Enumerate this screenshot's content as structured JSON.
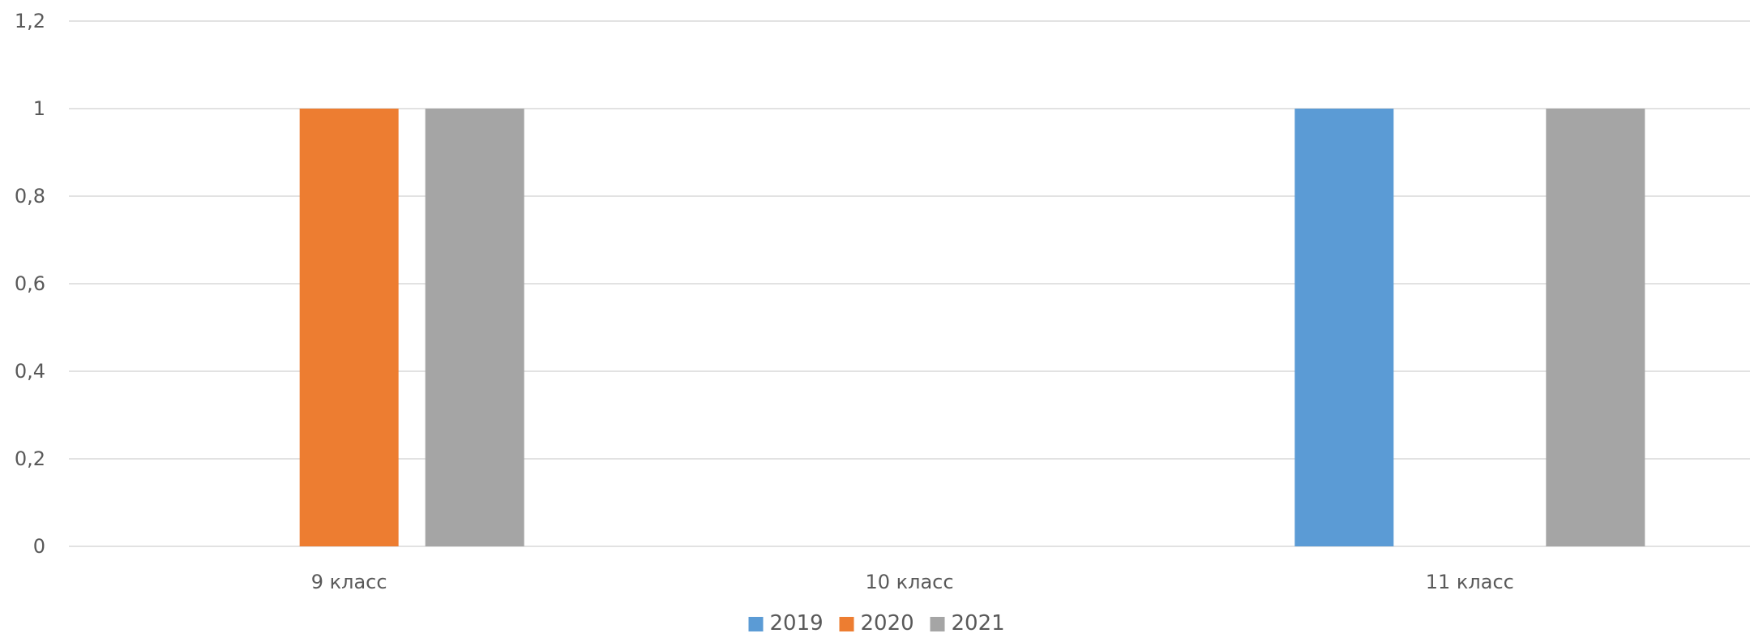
{
  "chart_data": {
    "type": "bar",
    "categories": [
      "9 класс",
      "10 класс",
      "11 класс"
    ],
    "series": [
      {
        "name": "2019",
        "color": "#5b9bd5",
        "values": [
          0,
          0,
          1
        ]
      },
      {
        "name": "2020",
        "color": "#ed7d31",
        "values": [
          1,
          0,
          0
        ]
      },
      {
        "name": "2021",
        "color": "#a5a5a5",
        "values": [
          1,
          0,
          1
        ]
      }
    ],
    "ylim": [
      0,
      1.2
    ],
    "yticks": [
      0,
      0.2,
      0.4,
      0.6,
      0.8,
      1,
      1.2
    ],
    "ytick_labels": [
      "0",
      "0,2",
      "0,4",
      "0,6",
      "0,8",
      "1",
      "1,2"
    ],
    "grid": true,
    "legend_position": "bottom",
    "title": "",
    "xlabel": "",
    "ylabel": ""
  }
}
